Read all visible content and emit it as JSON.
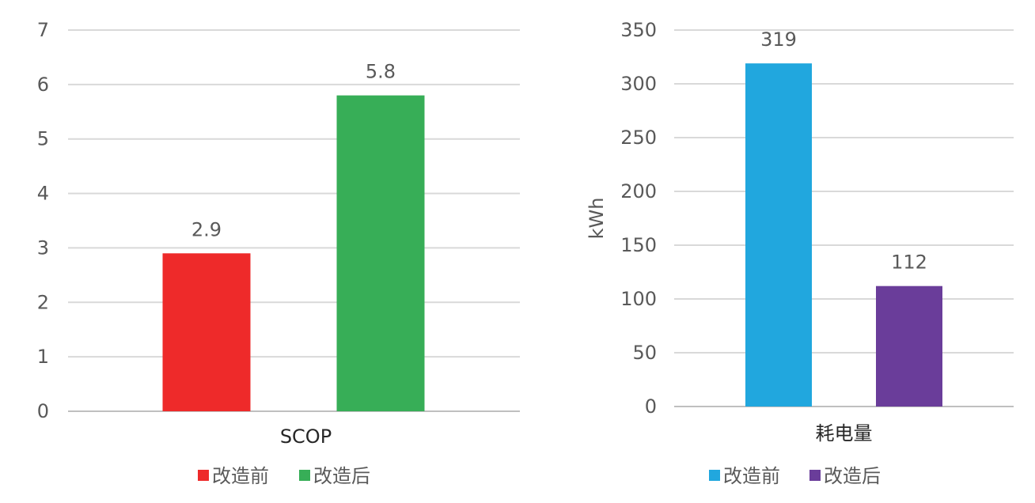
{
  "chart_data": [
    {
      "type": "bar",
      "categories": [
        "SCOP"
      ],
      "series": [
        {
          "name": "改造前",
          "values": [
            2.9
          ],
          "color": "#EE2A2A"
        },
        {
          "name": "改造后",
          "values": [
            5.8
          ],
          "color": "#37AE57"
        }
      ],
      "ylim": [
        0,
        7
      ],
      "yticks": [
        0,
        1,
        2,
        3,
        4,
        5,
        6,
        7
      ],
      "ylabel": "",
      "grid": true,
      "legend_position": "bottom"
    },
    {
      "type": "bar",
      "categories": [
        "耗电量"
      ],
      "series": [
        {
          "name": "改造前",
          "values": [
            319
          ],
          "color": "#21A7DE"
        },
        {
          "name": "改造后",
          "values": [
            112
          ],
          "color": "#6A3D9A"
        }
      ],
      "ylim": [
        0,
        350
      ],
      "yticks": [
        0,
        50,
        100,
        150,
        200,
        250,
        300,
        350
      ],
      "ylabel": "kWh",
      "grid": true,
      "legend_position": "bottom"
    }
  ]
}
